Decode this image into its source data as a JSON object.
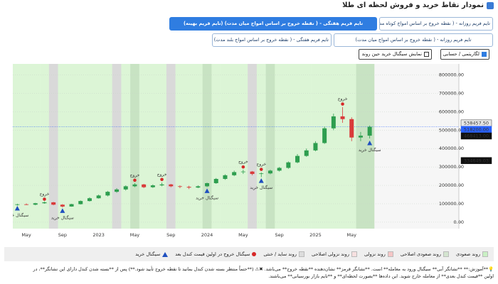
{
  "header": {
    "title": "نمودار نقاط خرید و فروش لحظه ای طلا"
  },
  "timeframes": [
    {
      "label": "تایم فریم روزانه - ( نقطه خروج بر اساس امواج کوتاه مدت)",
      "active": false
    },
    {
      "label": "تایم فریم هفتگی - ( نقطه خروج بر اساس امواج میان مدت) (تایم فریم بهینه)",
      "active": true
    },
    {
      "label": "تایم فریم روزانه - ( نقطه خروج بر اساس امواج میان مدت)",
      "active": false
    },
    {
      "label": "تایم فریم هفتگی - ( نقطه خروج بر اساس امواج بلند مدت)",
      "active": false
    }
  ],
  "options": [
    {
      "label": "لگاریتمی / حسابی",
      "checked": true
    },
    {
      "label": "نمایش سیگنال خرید حین روند",
      "checked": false
    }
  ],
  "chart_data": {
    "type": "candlestick",
    "categories": [
      null,
      "May",
      null,
      null,
      null,
      "Sep",
      null,
      null,
      null,
      "2023",
      null,
      null,
      null,
      "May",
      null,
      null,
      null,
      "Sep",
      null,
      null,
      null,
      "2024",
      null,
      null,
      null,
      "May",
      null,
      null,
      null,
      "Sep",
      null,
      null,
      null,
      "2025",
      null,
      null,
      null,
      "May",
      null,
      null
    ],
    "open": [
      95000,
      97000,
      95000,
      103000,
      108000,
      95000,
      85000,
      98000,
      115000,
      130000,
      145000,
      165000,
      178000,
      195000,
      205000,
      190000,
      200000,
      205000,
      195000,
      192000,
      188000,
      195000,
      212000,
      235000,
      255000,
      272000,
      275000,
      262000,
      265000,
      280000,
      295000,
      325000,
      360000,
      390000,
      430000,
      510000,
      575000,
      560000,
      460000,
      470000
    ],
    "high": [
      100000,
      102000,
      105000,
      112000,
      110000,
      98000,
      100000,
      118000,
      135000,
      150000,
      170000,
      185000,
      200000,
      212000,
      208000,
      205000,
      215000,
      208000,
      200000,
      198000,
      200000,
      215000,
      240000,
      260000,
      280000,
      285000,
      278000,
      270000,
      285000,
      300000,
      330000,
      370000,
      400000,
      440000,
      520000,
      590000,
      625000,
      570000,
      490000,
      525000
    ],
    "low": [
      90000,
      93000,
      92000,
      100000,
      92000,
      80000,
      84000,
      96000,
      112000,
      128000,
      140000,
      160000,
      172000,
      190000,
      185000,
      186000,
      195000,
      190000,
      185000,
      180000,
      185000,
      190000,
      208000,
      230000,
      250000,
      262000,
      255000,
      245000,
      260000,
      275000,
      290000,
      320000,
      355000,
      385000,
      425000,
      500000,
      540000,
      440000,
      440000,
      455000
    ],
    "close": [
      97000,
      95000,
      103000,
      108000,
      95000,
      85000,
      98000,
      115000,
      130000,
      145000,
      165000,
      178000,
      195000,
      205000,
      190000,
      200000,
      205000,
      195000,
      192000,
      188000,
      195000,
      212000,
      235000,
      255000,
      272000,
      275000,
      262000,
      265000,
      280000,
      295000,
      325000,
      360000,
      390000,
      430000,
      510000,
      575000,
      560000,
      460000,
      470000,
      518200
    ],
    "up_color": "#2e9e4f",
    "down_color": "#d93a3a",
    "background_colors": [
      "#dcf5d6",
      "#dcf5d6",
      "#dcf5d6",
      "#dcf5d6",
      "#d9d9d9",
      "#dcf5d6",
      "#dcf5d6",
      "#dcf5d6",
      "#dcf5d6",
      "#dcf5d6",
      "#dcf5d6",
      "#d9d9d9",
      "#dcf5d6",
      "#c8e3c3",
      "#dcf5d6",
      "#dcf5d6",
      "#dcf5d6",
      "#d9d9d9",
      "#dcf5d6",
      "#dcf5d6",
      "#dcf5d6",
      "#c8e3c3",
      "#dcf5d6",
      "#dcf5d6",
      "#dcf5d6",
      "#dcf5d6",
      "#d9d9d9",
      "#dcf5d6",
      "#c8e3c3",
      "#dcf5d6",
      "#dcf5d6",
      "#dcf5d6",
      "#dcf5d6",
      "#dcf5d6",
      "#dcf5d6",
      "#dcf5d6",
      "#dcf5d6",
      "#dcf5d6",
      "#c8e3c3",
      "#c8e3c3"
    ],
    "buy_signal": [
      75000,
      null,
      null,
      null,
      null,
      62000,
      null,
      null,
      null,
      null,
      null,
      null,
      null,
      null,
      null,
      null,
      null,
      null,
      null,
      null,
      null,
      170000,
      null,
      null,
      null,
      null,
      null,
      225000,
      null,
      null,
      null,
      null,
      null,
      null,
      null,
      null,
      null,
      null,
      null,
      430000
    ],
    "buy_label": "سیگنال خرید",
    "buy_color": "#1f4fbf",
    "exit_signal": [
      null,
      null,
      null,
      125000,
      null,
      null,
      null,
      null,
      null,
      null,
      null,
      null,
      null,
      228000,
      null,
      null,
      232000,
      null,
      null,
      null,
      null,
      null,
      null,
      null,
      null,
      300000,
      null,
      287000,
      null,
      null,
      null,
      null,
      null,
      null,
      null,
      null,
      642000,
      null,
      null,
      null
    ],
    "exit_label": "خروج",
    "exit_color": "#d62828",
    "ylim": [
      -35000,
      860000
    ],
    "yticks": [
      {
        "value": 0,
        "label": "0.00"
      },
      {
        "value": 100000,
        "label": "100000.00"
      },
      {
        "value": 200000,
        "label": "200000.00"
      },
      {
        "value": 300000,
        "label": "300000.00"
      },
      {
        "value": 400000,
        "label": "400000.00"
      },
      {
        "value": 500000,
        "label": "500000.00"
      },
      {
        "value": 600000,
        "label": "600000.00"
      },
      {
        "value": 700000,
        "label": "700000.00"
      },
      {
        "value": 800000,
        "label": "800000.00"
      }
    ],
    "grid": true,
    "price_labels": [
      {
        "value": 538457.5,
        "label": "538457.50",
        "color": "#e8e8e8"
      },
      {
        "value": 518200,
        "label": "518200.00",
        "color": "#2962ff"
      },
      {
        "value": 468413,
        "label": "468413.00",
        "color": "#111111"
      },
      {
        "value": 334649.03,
        "label": "334649.03",
        "color": "#111111"
      }
    ]
  },
  "legend": [
    {
      "label": "روند صعودی",
      "color": "#c9f0c4",
      "shape": "square"
    },
    {
      "label": "روند صعودی اصلاحی",
      "color": "#d3e4cf",
      "shape": "square"
    },
    {
      "label": "روند نزولی",
      "color": "#f5c6c6",
      "shape": "square"
    },
    {
      "label": "روند نزولی اصلاحی",
      "color": "#f7e0e0",
      "shape": "square"
    },
    {
      "label": "روند ساید / خنثی",
      "color": "#dcdcdc",
      "shape": "square"
    },
    {
      "label": "سیگنال خروج در اولین قیمت کندل بعد",
      "color": "#d62828",
      "shape": "dot"
    },
    {
      "label": "سیگنال خرید",
      "color": "#1f4fbf",
      "shape": "triangle"
    }
  ],
  "footnote": [
    "💡**آموزش:** **نشانگر آبی** سیگنال ورود به معامله** است. **نشانگر قرمز** نشان‌دهنده **نقطه خروج** می‌باشد. ✖⚠ (**حتماً منتظر بسته شدن کندل بمانید تا نقطه خروج تأیید شود.**) پس از **بسته شدن کندل دارای این نشانگر**، در",
    "اولین **قیمت کندل بعدی** از معامله خارج شوید. این داده‌ها **بصورت لحظه‌ای** و **تایم بازار بورسیانی** می‌باشند."
  ]
}
